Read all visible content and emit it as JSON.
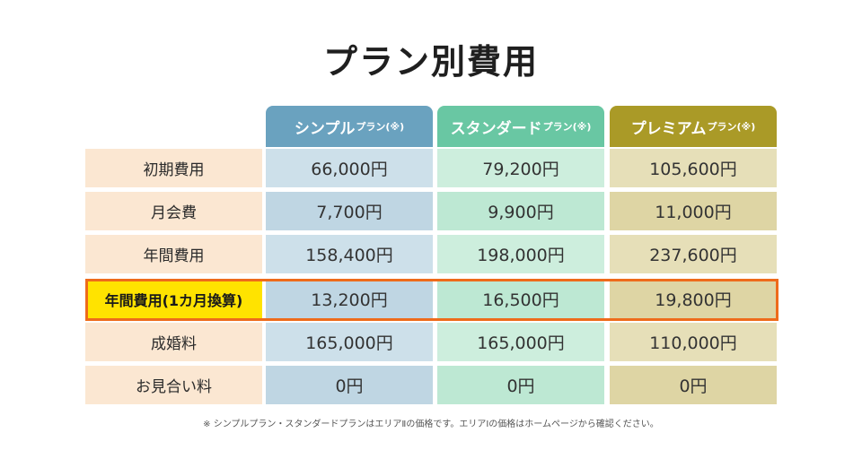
{
  "title": "プラン別費用",
  "plans": [
    {
      "name": "シンプル",
      "suffix": "プラン(※)",
      "color": "#6aa2bf"
    },
    {
      "name": "スタンダード",
      "suffix": "プラン(※)",
      "color": "#69c7a3"
    },
    {
      "name": "プレミアム",
      "suffix": "プラン(※)",
      "color": "#aa9a27"
    }
  ],
  "rows": [
    {
      "label": "初期費用",
      "values": [
        "66,000円",
        "79,200円",
        "105,600円"
      ]
    },
    {
      "label": "月会費",
      "values": [
        "7,700円",
        "9,900円",
        "11,000円"
      ]
    },
    {
      "label": "年間費用",
      "values": [
        "158,400円",
        "198,000円",
        "237,600円"
      ]
    },
    {
      "label": "年間費用(1カ月換算)",
      "values": [
        "13,200円",
        "16,500円",
        "19,800円"
      ],
      "highlighted": true
    },
    {
      "label": "成婚料",
      "values": [
        "165,000円",
        "165,000円",
        "110,000円"
      ]
    },
    {
      "label": "お見合い料",
      "values": [
        "0円",
        "0円",
        "0円"
      ]
    }
  ],
  "note": "※ シンプルプラン・スタンダードプランはエリアⅡの価格です。エリアⅠの価格はホームページから確認ください。",
  "colors": {
    "highlight_label": "#ffe300",
    "highlight_border": "#ee6b1b"
  }
}
